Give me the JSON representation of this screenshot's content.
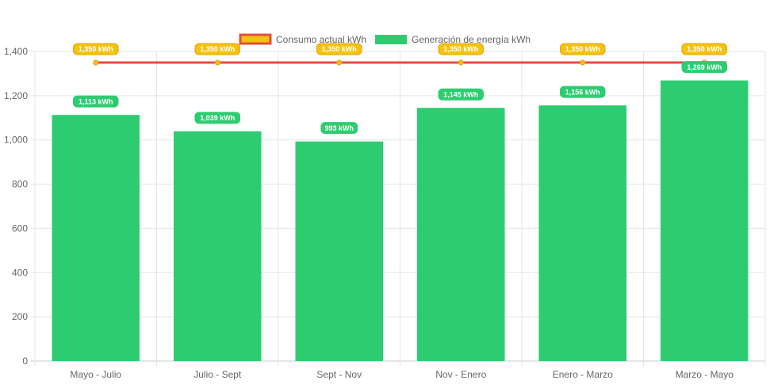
{
  "chart_data": {
    "type": "bar",
    "title": "",
    "xlabel": "",
    "ylabel": "",
    "ylim": [
      0,
      1400
    ],
    "yticks": [
      0,
      200,
      400,
      600,
      800,
      1000,
      1200,
      1400
    ],
    "ytick_labels": [
      "0",
      "200",
      "400",
      "600",
      "800",
      "1,000",
      "1,200",
      "1,400"
    ],
    "grid": true,
    "legend_position": "top-center",
    "categories": [
      "Mayo - Julio",
      "Julio - Sept",
      "Sept - Nov",
      "Nov - Enero",
      "Enero - Marzo",
      "Marzo - Mayo"
    ],
    "series": [
      {
        "name": "Consumo actual kWh",
        "type": "line",
        "color": "#e74c3c",
        "fill": "#f1c40f",
        "label_fill": "#f39c12",
        "values": [
          1350,
          1350,
          1350,
          1350,
          1350,
          1350
        ],
        "labels": [
          "1,350 kWh",
          "1,350 kWh",
          "1,350 kWh",
          "1,350 kWh",
          "1,350 kWh",
          "1,350 kWh"
        ]
      },
      {
        "name": "Generación de energía kWh",
        "type": "bar",
        "color": "#2ecc71",
        "values": [
          1113,
          1039,
          993,
          1145,
          1156,
          1269
        ],
        "labels": [
          "1,113 kWh",
          "1,039 kWh",
          "993 kWh",
          "1,145 kWh",
          "1,156 kWh",
          "1,269 kWh"
        ]
      }
    ]
  }
}
